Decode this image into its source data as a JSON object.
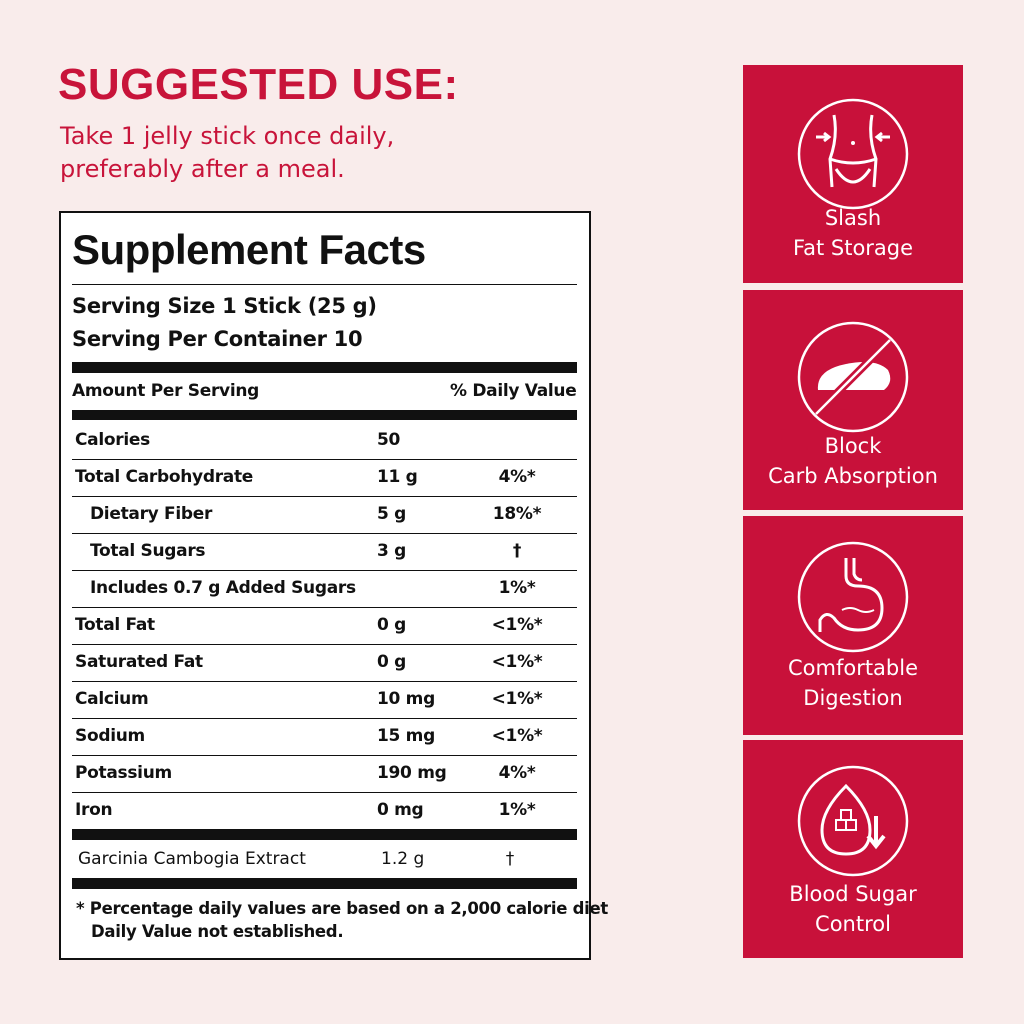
{
  "usage": {
    "heading": "SUGGESTED USE:",
    "lines": [
      "Take 1 jelly stick once daily,",
      "preferably after a meal."
    ]
  },
  "facts": {
    "title": "Supplement Facts",
    "serving_size": "Serving Size 1 Stick (25 g)",
    "servings": "Serving Per Container 10",
    "col_amount": "Amount Per Serving",
    "col_dv": "% Daily Value",
    "rows": [
      {
        "name": "Calories",
        "amount": "50"
      },
      {
        "name": "Total Carbohydrate",
        "amount": "11 g",
        "dv": "4%*"
      },
      {
        "name": "Dietary Fiber",
        "amount": "5 g",
        "dv": "18%*"
      },
      {
        "name": "Total Sugars",
        "amount": "3 g",
        "dv": "†"
      },
      {
        "name": "Includes 0.7 g Added Sugars",
        "dv": "1%*"
      },
      {
        "name": "Total Fat",
        "amount": "0 g",
        "dv": "<1%*"
      },
      {
        "name": "Saturated Fat",
        "amount": "0 g",
        "dv": "<1%*"
      },
      {
        "name": "Calcium",
        "amount": "10 mg",
        "dv": "<1%*"
      },
      {
        "name": "Sodium",
        "amount": "15 mg",
        "dv": "<1%*"
      },
      {
        "name": "Potassium",
        "amount": "190 mg",
        "dv": "4%*"
      },
      {
        "name": "Iron",
        "amount": "0 mg",
        "dv": "1%*"
      }
    ],
    "extract": {
      "name": "Garcinia Cambogia Extract",
      "amount": "1.2 g",
      "dv": "†"
    },
    "footnotes": [
      "* Percentage daily values are based on a 2,000 calorie diet",
      "Daily Value not established."
    ]
  },
  "benefits": [
    {
      "lines": [
        "Slash",
        "Fat Storage"
      ]
    },
    {
      "lines": [
        "Block",
        "Carb Absorption"
      ]
    },
    {
      "lines": [
        "Comfortable",
        "Digestion"
      ]
    },
    {
      "lines": [
        "Blood Sugar",
        "Control"
      ]
    }
  ]
}
